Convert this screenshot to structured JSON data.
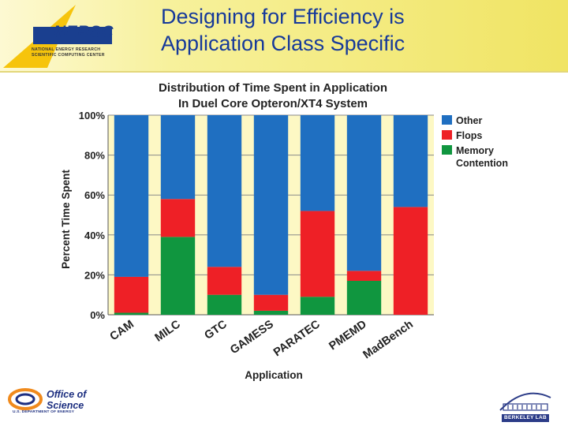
{
  "header": {
    "title_line1": "Designing for Efficiency is",
    "title_line2": "Application Class Specific",
    "logo_name": "NERSC",
    "logo_sub_line1": "NATIONAL ENERGY RESEARCH",
    "logo_sub_line2": "SCIENTIFIC COMPUTING CENTER"
  },
  "footer": {
    "doe_line1": "Office of",
    "doe_line2": "Science",
    "doe_sub": "U.S. DEPARTMENT OF ENERGY",
    "lab_name": "BERKELEY LAB"
  },
  "colors": {
    "other": "#1f6fc1",
    "flops": "#ee2026",
    "memory": "#10963f",
    "plot_bg": "#fdf8c4"
  },
  "chart_data": {
    "type": "bar",
    "stacked": true,
    "title": "Distribution of Time Spent in Application\nIn Duel Core Opteron/XT4 System",
    "xlabel": "Application",
    "ylabel": "Percent Time Spent",
    "ylim": [
      0,
      100
    ],
    "yticks": [
      "0%",
      "20%",
      "40%",
      "60%",
      "80%",
      "100%"
    ],
    "grid": true,
    "legend_position": "right",
    "categories": [
      "CAM",
      "MILC",
      "GTC",
      "GAMESS",
      "PARATEC",
      "PMEMD",
      "MadBench"
    ],
    "series": [
      {
        "name": "Memory Contention",
        "values": [
          1,
          39,
          10,
          2,
          9,
          17,
          0
        ]
      },
      {
        "name": "Flops",
        "values": [
          18,
          19,
          14,
          8,
          43,
          5,
          54
        ]
      },
      {
        "name": "Other",
        "values": [
          81,
          42,
          76,
          90,
          48,
          78,
          46
        ]
      }
    ],
    "legend_order": [
      "Other",
      "Flops",
      "Memory Contention"
    ]
  }
}
